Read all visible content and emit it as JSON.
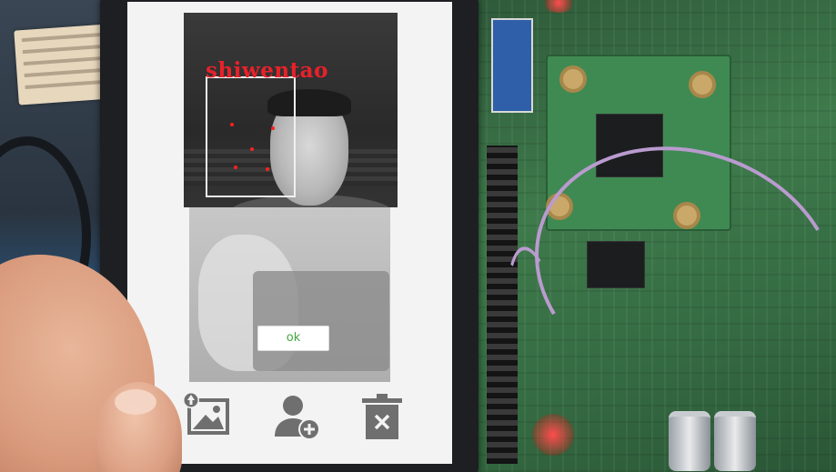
{
  "camera": {
    "recognized_name": "shiwentao",
    "face_box_color": "#f0f0f0",
    "landmark_color": "#ff2020",
    "name_color": "#e8212a"
  },
  "dialog": {
    "ok_label": "ok",
    "ok_color": "#3ea83e"
  },
  "toolbar": {
    "icons": [
      "image-upload-icon",
      "add-user-icon",
      "delete-icon"
    ],
    "icon_color": "#6f6f6f"
  }
}
